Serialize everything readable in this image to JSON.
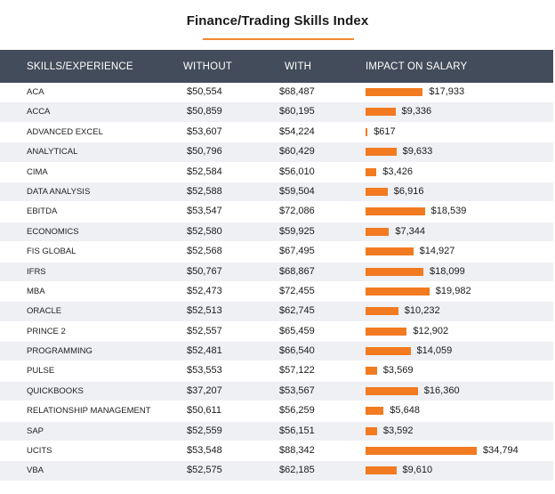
{
  "chart_data": {
    "type": "table",
    "title": "Finance/Trading Skills Index",
    "columns": [
      "SKILLS/EXPERIENCE",
      "WITHOUT",
      "WITH",
      "IMPACT ON SALARY"
    ],
    "rows": [
      {
        "skill": "ACA",
        "without": "$50,554",
        "with": "$68,487",
        "impact": "$17,933",
        "impact_value": 17933
      },
      {
        "skill": "ACCA",
        "without": "$50,859",
        "with": "$60,195",
        "impact": "$9,336",
        "impact_value": 9336
      },
      {
        "skill": "ADVANCED EXCEL",
        "without": "$53,607",
        "with": "$54,224",
        "impact": "$617",
        "impact_value": 617
      },
      {
        "skill": "ANALYTICAL",
        "without": "$50,796",
        "with": "$60,429",
        "impact": "$9,633",
        "impact_value": 9633
      },
      {
        "skill": "CIMA",
        "without": "$52,584",
        "with": "$56,010",
        "impact": "$3,426",
        "impact_value": 3426
      },
      {
        "skill": "DATA ANALYSIS",
        "without": "$52,588",
        "with": "$59,504",
        "impact": "$6,916",
        "impact_value": 6916
      },
      {
        "skill": "EBITDA",
        "without": "$53,547",
        "with": "$72,086",
        "impact": "$18,539",
        "impact_value": 18539
      },
      {
        "skill": "ECONOMICS",
        "without": "$52,580",
        "with": "$59,925",
        "impact": "$7,344",
        "impact_value": 7344
      },
      {
        "skill": "FIS GLOBAL",
        "without": "$52,568",
        "with": "$67,495",
        "impact": "$14,927",
        "impact_value": 14927
      },
      {
        "skill": "IFRS",
        "without": "$50,767",
        "with": "$68,867",
        "impact": "$18,099",
        "impact_value": 18099
      },
      {
        "skill": "MBA",
        "without": "$52,473",
        "with": "$72,455",
        "impact": "$19,982",
        "impact_value": 19982
      },
      {
        "skill": "ORACLE",
        "without": "$52,513",
        "with": "$62,745",
        "impact": "$10,232",
        "impact_value": 10232
      },
      {
        "skill": "PRINCE 2",
        "without": "$52,557",
        "with": "$65,459",
        "impact": "$12,902",
        "impact_value": 12902
      },
      {
        "skill": "PROGRAMMING",
        "without": "$52,481",
        "with": "$66,540",
        "impact": "$14,059",
        "impact_value": 14059
      },
      {
        "skill": "PULSE",
        "without": "$53,553",
        "with": "$57,122",
        "impact": "$3,569",
        "impact_value": 3569
      },
      {
        "skill": "QUICKBOOKS",
        "without": "$37,207",
        "with": "$53,567",
        "impact": "$16,360",
        "impact_value": 16360
      },
      {
        "skill": "RELATIONSHIP MANAGEMENT",
        "without": "$50,611",
        "with": "$56,259",
        "impact": "$5,648",
        "impact_value": 5648
      },
      {
        "skill": "SAP",
        "without": "$52,559",
        "with": "$56,151",
        "impact": "$3,592",
        "impact_value": 3592
      },
      {
        "skill": "UCITS",
        "without": "$53,548",
        "with": "$88,342",
        "impact": "$34,794",
        "impact_value": 34794
      },
      {
        "skill": "VBA",
        "without": "$52,575",
        "with": "$62,185",
        "impact": "$9,610",
        "impact_value": 9610
      }
    ],
    "bar_color": "#f27a20",
    "header_color": "#434c5b",
    "accent_color": "#f28a2e"
  }
}
